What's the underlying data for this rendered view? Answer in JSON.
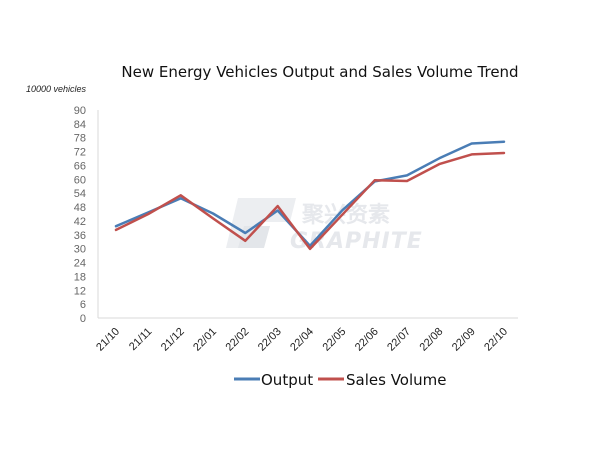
{
  "chart_data": {
    "type": "line",
    "title": "New Energy Vehicles Output and Sales Volume Trend",
    "unit_label": "10000 vehicles",
    "categories": [
      "21/10",
      "21/11",
      "21/12",
      "22/01",
      "22/02",
      "22/03",
      "22/04",
      "22/05",
      "22/06",
      "22/07",
      "22/08",
      "22/09",
      "22/10"
    ],
    "series": [
      {
        "name": "Output",
        "color": "#4a7db5",
        "values": [
          39.7,
          45.7,
          51.8,
          45.2,
          36.8,
          46.5,
          31.2,
          46.6,
          59.1,
          61.7,
          69.1,
          75.5,
          76.3
        ]
      },
      {
        "name": "Sales Volume",
        "color": "#c0504d",
        "values": [
          38.1,
          45.0,
          53.1,
          43.1,
          33.4,
          48.4,
          29.9,
          44.7,
          59.6,
          59.3,
          66.6,
          70.8,
          71.4
        ]
      }
    ],
    "yticks": [
      0,
      6,
      12,
      18,
      24,
      30,
      36,
      42,
      48,
      54,
      60,
      66,
      72,
      78,
      84,
      90
    ],
    "ylim": [
      0,
      90
    ],
    "grid": false,
    "legend": "bottom"
  },
  "watermark": {
    "text_cn": "聚兴资素",
    "text_en": "GRAPHITE"
  }
}
